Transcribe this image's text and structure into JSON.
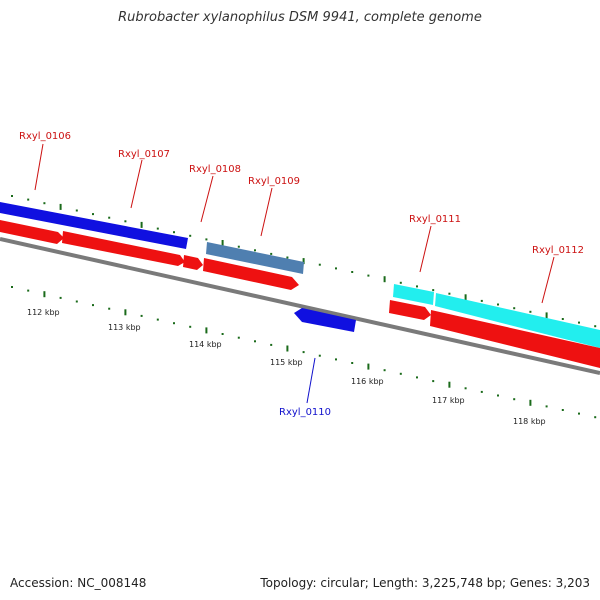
{
  "title": "Rubrobacter xylanophilus DSM 9941, complete genome",
  "footer": {
    "accession": "Accession: NC_008148",
    "summary": "Topology: circular; Length: 3,225,748 bp; Genes: 3,203"
  },
  "colors": {
    "cds": "#ee1111",
    "gene_blue": "#1010e0",
    "gene_steel": "#4f7fb0",
    "gene_cyan": "#22eeee",
    "backbone": "#7a7a7a",
    "tick": "#1a6a1a",
    "label_forward": "#cc1111",
    "label_reverse": "#1111cc"
  },
  "kbp_labels": [
    "112 kbp",
    "113 kbp",
    "114 kbp",
    "115 kbp",
    "116 kbp",
    "117 kbp",
    "118 kbp"
  ],
  "gene_labels": [
    {
      "text": "Rxyl_0106",
      "strand": "forward"
    },
    {
      "text": "Rxyl_0107",
      "strand": "forward"
    },
    {
      "text": "Rxyl_0108",
      "strand": "forward"
    },
    {
      "text": "Rxyl_0109",
      "strand": "forward"
    },
    {
      "text": "Rxyl_0110",
      "strand": "reverse"
    },
    {
      "text": "Rxyl_0111",
      "strand": "forward"
    },
    {
      "text": "Rxyl_0112",
      "strand": "forward"
    }
  ]
}
